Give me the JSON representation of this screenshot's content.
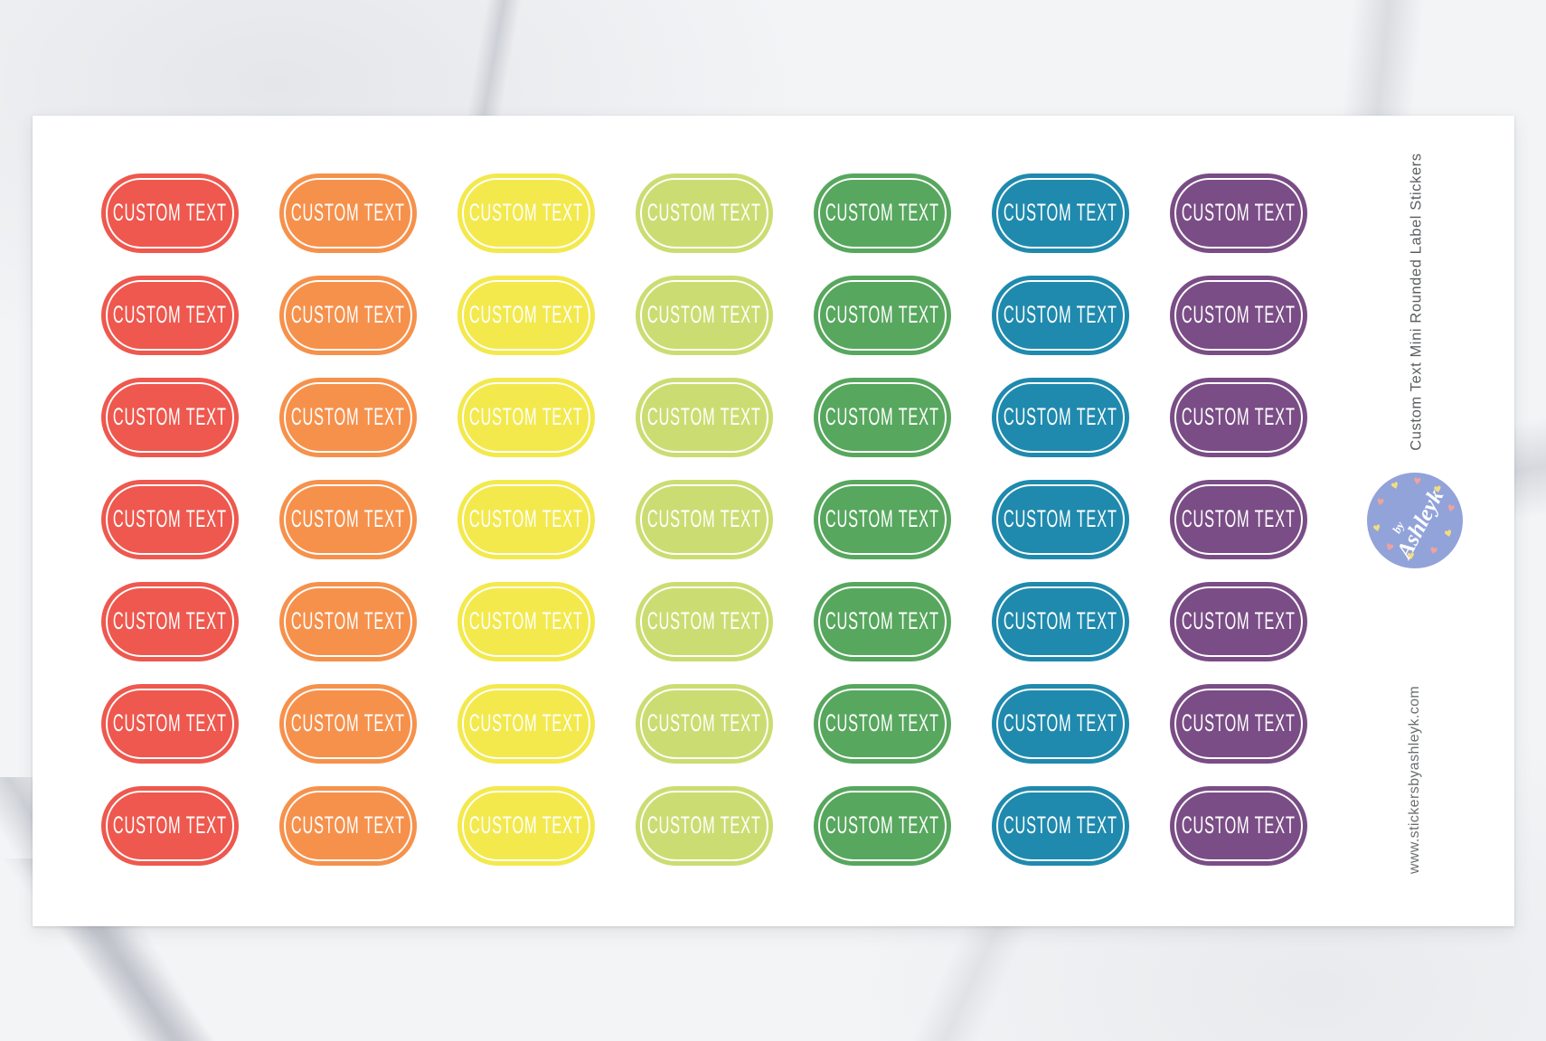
{
  "product": {
    "title": "Custom Text Mini Rounded Label  Stickers",
    "website": "www.stickersbyashleyk.com"
  },
  "sheet": {
    "sticker_label": "CUSTOM TEXT",
    "rows": 7,
    "columns": [
      {
        "name": "red",
        "color": "#ee584e"
      },
      {
        "name": "orange",
        "color": "#f6914c"
      },
      {
        "name": "yellow",
        "color": "#f3e94d"
      },
      {
        "name": "lime",
        "color": "#cbdd72"
      },
      {
        "name": "green",
        "color": "#57a75e"
      },
      {
        "name": "teal",
        "color": "#1f8aad"
      },
      {
        "name": "purple",
        "color": "#7a4d86"
      }
    ]
  },
  "logo": {
    "line1": "by",
    "line2": "Ashleyk",
    "heart_glyph": "♥",
    "circle_color": "#92a3da",
    "heart_pink": "#f2a29b",
    "heart_yellow": "#f3dd7f"
  }
}
